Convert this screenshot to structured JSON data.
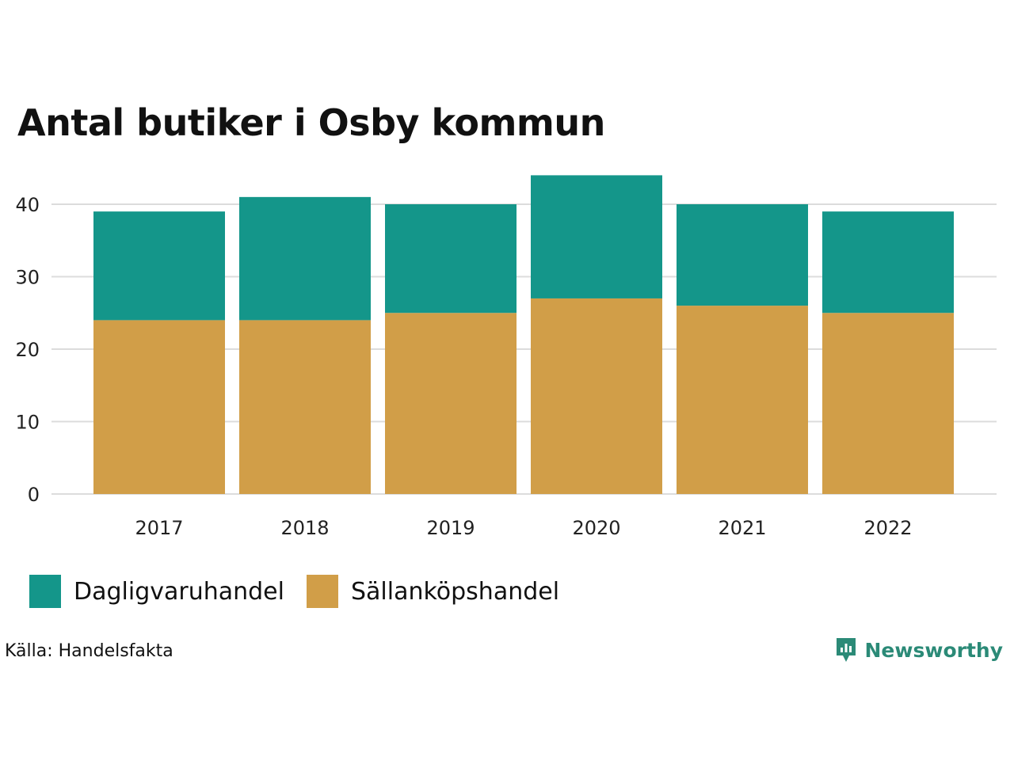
{
  "title": "Antal butiker i Osby kommun",
  "source": "Källa: Handelsfakta",
  "brand": {
    "name": "Newsworthy",
    "icon": "newsworthy-logo-icon",
    "color": "#2b8a77"
  },
  "chart_data": {
    "type": "bar",
    "stacked": true,
    "title": "Antal butiker i Osby kommun",
    "xlabel": "",
    "ylabel": "",
    "categories": [
      "2017",
      "2018",
      "2019",
      "2020",
      "2021",
      "2022"
    ],
    "series": [
      {
        "name": "Sällanköpshandel",
        "color": "#d19e48",
        "values": [
          24,
          24,
          25,
          27,
          26,
          25
        ]
      },
      {
        "name": "Dagligvaruhandel",
        "color": "#14968a",
        "values": [
          15,
          17,
          15,
          17,
          14,
          14
        ]
      }
    ],
    "yticks": [
      0,
      10,
      20,
      30,
      40
    ],
    "ylim": [
      0,
      44
    ],
    "grid": true,
    "legend_position": "bottom-left"
  },
  "legend": [
    {
      "label": "Dagligvaruhandel",
      "color": "#14968a"
    },
    {
      "label": "Sällanköpshandel",
      "color": "#d19e48"
    }
  ]
}
